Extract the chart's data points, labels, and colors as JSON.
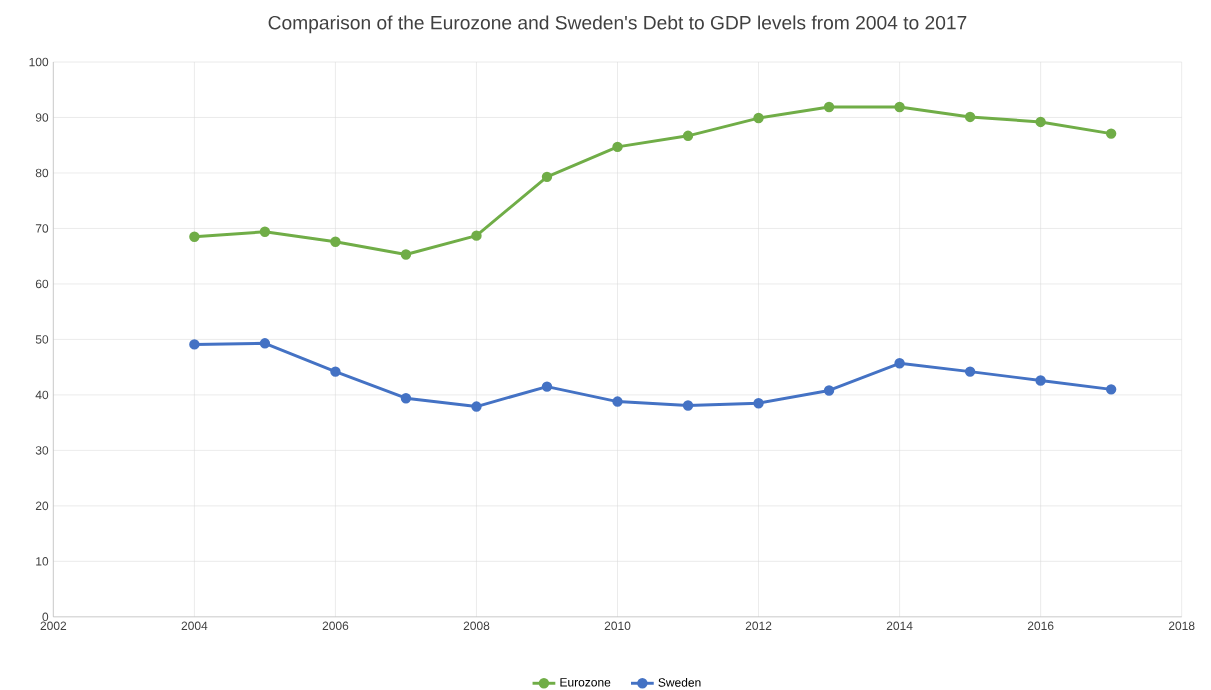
{
  "chart_data": {
    "type": "line",
    "title": "Comparison of the Eurozone and Sweden's Debt to GDP levels from 2004 to 2017",
    "x": [
      2004,
      2005,
      2006,
      2007,
      2008,
      2009,
      2010,
      2011,
      2012,
      2013,
      2014,
      2015,
      2016,
      2017
    ],
    "series": [
      {
        "name": "Eurozone",
        "color": "#70ad47",
        "values": [
          68.5,
          69.4,
          67.6,
          65.3,
          68.7,
          79.3,
          84.7,
          86.7,
          89.9,
          91.9,
          91.9,
          90.1,
          89.2,
          87.1
        ]
      },
      {
        "name": "Sweden",
        "color": "#4472c4",
        "values": [
          49.1,
          49.3,
          44.2,
          39.4,
          37.9,
          41.5,
          38.8,
          38.1,
          38.5,
          40.8,
          45.7,
          44.2,
          42.6,
          41.0
        ]
      }
    ],
    "xlim": [
      2002,
      2018
    ],
    "xticks": [
      2002,
      2004,
      2006,
      2008,
      2010,
      2012,
      2014,
      2016,
      2018
    ],
    "ylim": [
      0,
      100
    ],
    "yticks": [
      0,
      10,
      20,
      30,
      40,
      50,
      60,
      70,
      80,
      90,
      100
    ],
    "grid": true,
    "legend": "bottom",
    "marker": "circle",
    "line_style": "solid"
  }
}
